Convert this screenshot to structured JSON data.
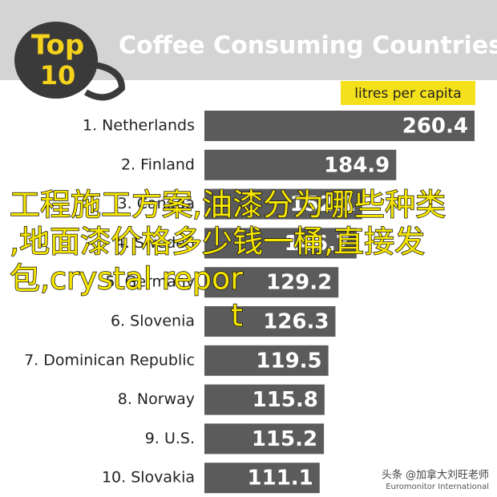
{
  "chart_data": {
    "type": "bar",
    "badge": [
      "Top",
      "10"
    ],
    "title": "Coffee Consuming Countries",
    "unit_label": "litres per capita",
    "categories": [
      "1. Netherlands",
      "2. Finland",
      "3. Canada",
      "4. Sweden",
      "5. Germany",
      "6. Slovenia",
      "7. Dominican Republic",
      "8. Norway",
      "9. U.S.",
      "10. Slovakia"
    ],
    "values": [
      260.4,
      184.9,
      152.1,
      146.7,
      129.2,
      126.3,
      119.5,
      115.8,
      115.2,
      111.1
    ],
    "color": "#5b5b5b",
    "source": "Euromonitor International"
  },
  "overlay_text": [
    "工程施工方案,油漆分为哪些种类",
    ",地面漆价格多少钱一桶,直接发",
    "包,crystal repor",
    "t"
  ],
  "watermark": "头条 @加拿大刘旺老师"
}
